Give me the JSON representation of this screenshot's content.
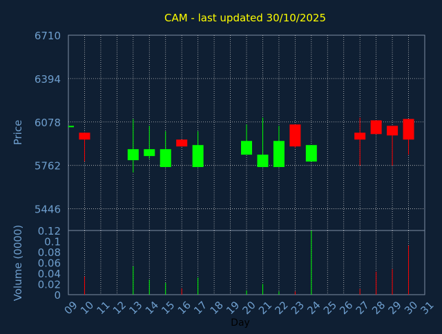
{
  "title": "CAM - last updated 30/10/2025",
  "colors": {
    "background": "#0f1f33",
    "title": "#ffff00",
    "axis_text": "#6f9fce",
    "xlabel_text": "#000000",
    "grid": "#c8c8c8",
    "up": "#00ff00",
    "down": "#ff0000"
  },
  "chart_data": [
    {
      "type": "candlestick",
      "ylabel": "Price",
      "ylim": [
        5288,
        6710
      ],
      "yticks": [
        5446,
        5762,
        6078,
        6394,
        6710
      ],
      "xlim": [
        9,
        31
      ],
      "grid": true,
      "candles": [
        {
          "day": 9,
          "open": 6050,
          "high": 6050,
          "low": 6050,
          "close": 6050
        },
        {
          "day": 10,
          "open": 6000,
          "high": 6000,
          "low": 5790,
          "close": 5950
        },
        {
          "day": 13,
          "open": 5800,
          "high": 6100,
          "low": 5710,
          "close": 5880
        },
        {
          "day": 14,
          "open": 5830,
          "high": 6050,
          "low": 5810,
          "close": 5880
        },
        {
          "day": 15,
          "open": 5750,
          "high": 6010,
          "low": 5750,
          "close": 5880
        },
        {
          "day": 16,
          "open": 5950,
          "high": 5950,
          "low": 5900,
          "close": 5900
        },
        {
          "day": 17,
          "open": 5750,
          "high": 6010,
          "low": 5750,
          "close": 5910
        },
        {
          "day": 20,
          "open": 5840,
          "high": 6060,
          "low": 5840,
          "close": 5940
        },
        {
          "day": 21,
          "open": 5750,
          "high": 6110,
          "low": 5750,
          "close": 5840
        },
        {
          "day": 22,
          "open": 5750,
          "high": 6050,
          "low": 5750,
          "close": 5940
        },
        {
          "day": 23,
          "open": 6060,
          "high": 6060,
          "low": 5890,
          "close": 5900
        },
        {
          "day": 24,
          "open": 5790,
          "high": 5910,
          "low": 5790,
          "close": 5910
        },
        {
          "day": 27,
          "open": 6000,
          "high": 6110,
          "low": 5760,
          "close": 5950
        },
        {
          "day": 28,
          "open": 6090,
          "high": 6090,
          "low": 5990,
          "close": 5990
        },
        {
          "day": 29,
          "open": 6050,
          "high": 6050,
          "low": 5760,
          "close": 5980
        },
        {
          "day": 30,
          "open": 6100,
          "high": 6100,
          "low": 5840,
          "close": 5950
        }
      ]
    },
    {
      "type": "bar",
      "ylabel": "Volume (0000)",
      "xlabel": "Day",
      "ylim": [
        0,
        0.12
      ],
      "yticks": [
        0,
        0.02,
        0.04,
        0.06,
        0.08,
        0.1,
        0.12
      ],
      "ytick_labels": [
        "0",
        "0.02",
        "0.04",
        "0.06",
        "0.08",
        "0.1",
        "0.12"
      ],
      "xlim": [
        9,
        31
      ],
      "xticks": [
        "09",
        "10",
        "11",
        "12",
        "13",
        "14",
        "15",
        "16",
        "17",
        "18",
        "19",
        "20",
        "21",
        "22",
        "23",
        "24",
        "25",
        "26",
        "27",
        "28",
        "29",
        "30",
        "31"
      ],
      "grid": true,
      "bars": [
        {
          "day": 10,
          "value": 0.034,
          "dir": "down"
        },
        {
          "day": 13,
          "value": 0.053,
          "dir": "up"
        },
        {
          "day": 14,
          "value": 0.028,
          "dir": "up"
        },
        {
          "day": 15,
          "value": 0.022,
          "dir": "up"
        },
        {
          "day": 16,
          "value": 0.012,
          "dir": "down"
        },
        {
          "day": 17,
          "value": 0.032,
          "dir": "up"
        },
        {
          "day": 20,
          "value": 0.008,
          "dir": "up"
        },
        {
          "day": 21,
          "value": 0.02,
          "dir": "up"
        },
        {
          "day": 22,
          "value": 0.006,
          "dir": "up"
        },
        {
          "day": 23,
          "value": 0.006,
          "dir": "down"
        },
        {
          "day": 24,
          "value": 0.12,
          "dir": "up"
        },
        {
          "day": 27,
          "value": 0.011,
          "dir": "down"
        },
        {
          "day": 28,
          "value": 0.043,
          "dir": "down"
        },
        {
          "day": 29,
          "value": 0.048,
          "dir": "down"
        },
        {
          "day": 30,
          "value": 0.092,
          "dir": "down"
        }
      ]
    }
  ]
}
